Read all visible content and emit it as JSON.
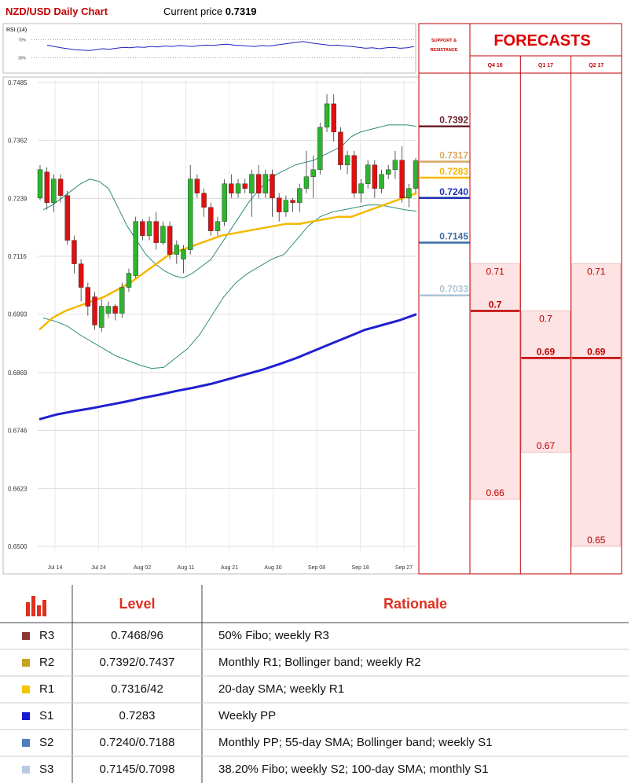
{
  "header": {
    "title": "NZD/USD Daily Chart",
    "price_label": "Current price",
    "price_value": "0.7319"
  },
  "colors": {
    "up_candle": "#2db52d",
    "down_candle": "#e01010",
    "bollinger": "#2e8b7a",
    "sma_yellow": "#f5b800",
    "sma_blue": "#2020d0",
    "forecast_fill": "#fde3e3",
    "forecast_line": "#c00000"
  },
  "chart_data": [
    {
      "type": "line",
      "title": "RSI (14)",
      "ytick_labels": [
        "70%",
        "30%"
      ],
      "ylim": [
        0,
        100
      ],
      "values": [
        58,
        55,
        52,
        50,
        48,
        47,
        46,
        48,
        50,
        49,
        51,
        53,
        52,
        54,
        53,
        55,
        54,
        56,
        55,
        57,
        56,
        55,
        57,
        58,
        57,
        59,
        60,
        58,
        57,
        56,
        55,
        57,
        56,
        58,
        60,
        62,
        64,
        66,
        63,
        61,
        59,
        57,
        58,
        56,
        55,
        53,
        51,
        52,
        50,
        52,
        53,
        51,
        52,
        55
      ]
    },
    {
      "type": "candlestick",
      "title": "",
      "ylim": [
        0.65,
        0.7485
      ],
      "ytick_labels": [
        "0.7485",
        "0.7362",
        "0.7239",
        "0.7116",
        "0.6993",
        "0.6869",
        "0.6746",
        "0.6623",
        "0.6500"
      ],
      "xtick_labels": [
        "Jul 14",
        "Jul 24",
        "Aug 02",
        "Aug 11",
        "Aug 21",
        "Aug 30",
        "Sep 08",
        "Sep 18",
        "Sep 27"
      ],
      "candles": [
        [
          0.724,
          0.73,
          0.7235,
          0.731
        ],
        [
          0.7295,
          0.723,
          0.7215,
          0.7305
        ],
        [
          0.723,
          0.728,
          0.721,
          0.729
        ],
        [
          0.728,
          0.7245,
          0.723,
          0.729
        ],
        [
          0.7245,
          0.715,
          0.714,
          0.7255
        ],
        [
          0.715,
          0.71,
          0.708,
          0.716
        ],
        [
          0.71,
          0.705,
          0.702,
          0.711
        ],
        [
          0.705,
          0.701,
          0.699,
          0.706
        ],
        [
          0.703,
          0.697,
          0.696,
          0.704
        ],
        [
          0.6965,
          0.701,
          0.6955,
          0.7025
        ],
        [
          0.6995,
          0.701,
          0.6985,
          0.702
        ],
        [
          0.701,
          0.6995,
          0.698,
          0.7015
        ],
        [
          0.6995,
          0.705,
          0.6985,
          0.706
        ],
        [
          0.705,
          0.708,
          0.704,
          0.709
        ],
        [
          0.7075,
          0.719,
          0.707,
          0.72
        ],
        [
          0.719,
          0.716,
          0.715,
          0.7195
        ],
        [
          0.716,
          0.719,
          0.715,
          0.72
        ],
        [
          0.719,
          0.7145,
          0.713,
          0.721
        ],
        [
          0.7145,
          0.718,
          0.714,
          0.719
        ],
        [
          0.718,
          0.712,
          0.711,
          0.719
        ],
        [
          0.712,
          0.714,
          0.71,
          0.715
        ],
        [
          0.711,
          0.713,
          0.708,
          0.714
        ],
        [
          0.713,
          0.728,
          0.712,
          0.731
        ],
        [
          0.728,
          0.725,
          0.724,
          0.729
        ],
        [
          0.725,
          0.722,
          0.72,
          0.726
        ],
        [
          0.722,
          0.717,
          0.716,
          0.723
        ],
        [
          0.717,
          0.719,
          0.716,
          0.72
        ],
        [
          0.719,
          0.727,
          0.718,
          0.728
        ],
        [
          0.727,
          0.725,
          0.724,
          0.729
        ],
        [
          0.725,
          0.727,
          0.724,
          0.728
        ],
        [
          0.727,
          0.726,
          0.725,
          0.728
        ],
        [
          0.725,
          0.729,
          0.72,
          0.73
        ],
        [
          0.729,
          0.725,
          0.724,
          0.731
        ],
        [
          0.725,
          0.729,
          0.724,
          0.73
        ],
        [
          0.729,
          0.724,
          0.72,
          0.73
        ],
        [
          0.724,
          0.721,
          0.719,
          0.725
        ],
        [
          0.721,
          0.7235,
          0.72,
          0.7245
        ],
        [
          0.7235,
          0.723,
          0.721,
          0.724
        ],
        [
          0.723,
          0.726,
          0.721,
          0.727
        ],
        [
          0.726,
          0.7285,
          0.725,
          0.734
        ],
        [
          0.7285,
          0.73,
          0.724,
          0.733
        ],
        [
          0.73,
          0.739,
          0.729,
          0.74
        ],
        [
          0.739,
          0.744,
          0.738,
          0.746
        ],
        [
          0.744,
          0.738,
          0.736,
          0.746
        ],
        [
          0.738,
          0.731,
          0.73,
          0.739
        ],
        [
          0.731,
          0.733,
          0.729,
          0.734
        ],
        [
          0.733,
          0.725,
          0.724,
          0.734
        ],
        [
          0.725,
          0.727,
          0.723,
          0.728
        ],
        [
          0.727,
          0.731,
          0.726,
          0.732
        ],
        [
          0.731,
          0.726,
          0.724,
          0.732
        ],
        [
          0.726,
          0.729,
          0.725,
          0.73
        ],
        [
          0.729,
          0.73,
          0.728,
          0.731
        ],
        [
          0.73,
          0.732,
          0.728,
          0.734
        ],
        [
          0.732,
          0.724,
          0.723,
          0.735
        ],
        [
          0.724,
          0.726,
          0.722,
          0.727
        ],
        [
          0.726,
          0.7319,
          0.725,
          0.7325
        ]
      ],
      "series": [
        {
          "values": [
            0.7215,
            0.7225,
            0.724,
            0.7255,
            0.727,
            0.728,
            0.7275,
            0.726,
            0.722,
            0.718,
            0.715,
            0.712,
            0.71,
            0.7085,
            0.7075,
            0.707,
            0.708,
            0.7095,
            0.711,
            0.714,
            0.717,
            0.72,
            0.723,
            0.7255,
            0.7275,
            0.729,
            0.73,
            0.731,
            0.7315,
            0.732,
            0.733,
            0.734,
            0.735,
            0.737,
            0.738,
            0.7385,
            0.739,
            0.7395,
            0.7395,
            0.7395,
            0.7392
          ]
        },
        {
          "values": [
            0.6985,
            0.6978,
            0.6968,
            0.695,
            0.6935,
            0.692,
            0.6905,
            0.6895,
            0.6885,
            0.6878,
            0.688,
            0.69,
            0.692,
            0.695,
            0.699,
            0.703,
            0.706,
            0.708,
            0.7095,
            0.711,
            0.712,
            0.715,
            0.718,
            0.72,
            0.721,
            0.7215,
            0.722,
            0.7225,
            0.7225,
            0.722,
            0.7215,
            0.7212
          ]
        },
        {
          "values": [
            0.696,
            0.6985,
            0.7,
            0.701,
            0.702,
            0.703,
            0.7045,
            0.706,
            0.708,
            0.71,
            0.712,
            0.713,
            0.714,
            0.715,
            0.716,
            0.7165,
            0.717,
            0.7175,
            0.718,
            0.7185,
            0.7185,
            0.719,
            0.7195,
            0.72,
            0.72,
            0.721,
            0.722,
            0.723,
            0.724,
            0.725
          ]
        },
        {
          "values": [
            0.677,
            0.678,
            0.6787,
            0.6793,
            0.68,
            0.6807,
            0.6815,
            0.6822,
            0.683,
            0.6837,
            0.6845,
            0.6855,
            0.6865,
            0.6875,
            0.6887,
            0.69,
            0.6915,
            0.693,
            0.6945,
            0.696,
            0.697,
            0.698,
            0.6993
          ]
        }
      ]
    },
    {
      "type": "table",
      "title": "",
      "support_resistance_title": "SUPPORT & RESISTANCE",
      "levels": [
        {
          "value": 0.7392,
          "label": "0.7392",
          "color": "#6b1f2a"
        },
        {
          "value": 0.7317,
          "label": "0.7317",
          "color": "#d8a860"
        },
        {
          "value": 0.7283,
          "label": "0.7283",
          "color": "#f5b800"
        },
        {
          "value": 0.724,
          "label": "0.7240",
          "color": "#1a2fb0"
        },
        {
          "value": 0.7145,
          "label": "0.7145",
          "color": "#3a6ea5"
        },
        {
          "value": 0.7033,
          "label": "0.7033",
          "color": "#a9c4d8"
        }
      ]
    },
    {
      "type": "bar",
      "title": "FORECASTS",
      "categories": [
        "Q4 16",
        "Q1 17",
        "Q2 17"
      ],
      "series": [
        {
          "values": [
            0.71,
            0.7,
            0.71
          ],
          "labels": [
            "0.71",
            "0.7",
            "0.71"
          ]
        },
        {
          "values": [
            0.7,
            0.69,
            0.69
          ],
          "labels": [
            "0.7",
            "0.69",
            "0.69"
          ]
        },
        {
          "values": [
            0.66,
            0.67,
            0.65
          ],
          "labels": [
            "0.66",
            "0.67",
            "0.65"
          ]
        }
      ]
    }
  ],
  "table": {
    "headers": [
      "Level",
      "Rationale"
    ],
    "rows": [
      {
        "level": "R3",
        "value": "0.7468/96",
        "rationale": "50% Fibo; weekly R3",
        "color": "#8b3a3a"
      },
      {
        "level": "R2",
        "value": "0.7392/0.7437",
        "rationale": "Monthly R1; Bollinger band; weekly R2",
        "color": "#c9a020"
      },
      {
        "level": "R1",
        "value": "0.7316/42",
        "rationale": "20-day SMA; weekly R1",
        "color": "#f5c400"
      },
      {
        "level": "S1",
        "value": "0.7283",
        "rationale": "Weekly PP",
        "color": "#1a1ad0"
      },
      {
        "level": "S2",
        "value": "0.7240/0.7188",
        "rationale": "Monthly PP; 55-day SMA; Bollinger band; weekly S1",
        "color": "#4a7fc0"
      },
      {
        "level": "S3",
        "value": "0.7145/0.7098",
        "rationale": "38.20% Fibo; weekly S2; 100-day SMA; monthly S1",
        "color": "#b8cce4"
      }
    ]
  }
}
